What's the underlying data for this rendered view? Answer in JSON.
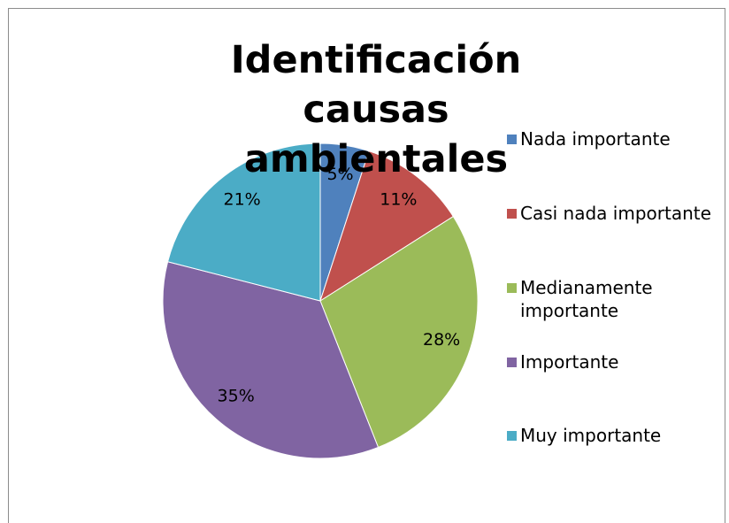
{
  "chart_data": {
    "type": "pie",
    "title": "Identificación causas ambientales",
    "categories": [
      "Nada importante",
      "Casi nada importante",
      "Medianamente importante",
      "Importante",
      "Muy importante"
    ],
    "values": [
      5,
      11,
      28,
      35,
      21
    ],
    "value_labels": [
      "5%",
      "11%",
      "28%",
      "35%",
      "21%"
    ],
    "colors": [
      "#4f81bd",
      "#c0504d",
      "#9bbb59",
      "#8064a2",
      "#4bacc6"
    ],
    "legend": "right"
  }
}
